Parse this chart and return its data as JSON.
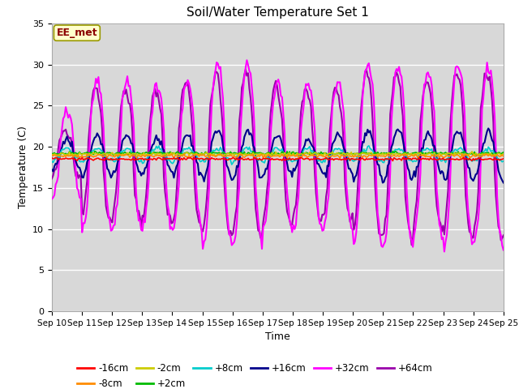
{
  "title": "Soil/Water Temperature Set 1",
  "xlabel": "Time",
  "ylabel": "Temperature (C)",
  "ylim": [
    0,
    35
  ],
  "xlim": [
    0,
    15
  ],
  "background_color": "#ffffff",
  "plot_bg_color": "#d8d8d8",
  "grid_color": "#ffffff",
  "x_tick_labels": [
    "Sep 10",
    "Sep 11",
    "Sep 12",
    "Sep 13",
    "Sep 14",
    "Sep 15",
    "Sep 16",
    "Sep 17",
    "Sep 18",
    "Sep 19",
    "Sep 20",
    "Sep 21",
    "Sep 22",
    "Sep 23",
    "Sep 24",
    "Sep 25"
  ],
  "annotation_text": "EE_met",
  "annotation_color": "#8b0000",
  "annotation_bg": "#ffffcc",
  "series": {
    "-16cm": {
      "color": "#ff0000",
      "lw": 1.2
    },
    "-8cm": {
      "color": "#ff8c00",
      "lw": 1.2
    },
    "-2cm": {
      "color": "#cccc00",
      "lw": 1.2
    },
    "+2cm": {
      "color": "#00bb00",
      "lw": 1.2
    },
    "+8cm": {
      "color": "#00cccc",
      "lw": 1.2
    },
    "+16cm": {
      "color": "#00008b",
      "lw": 1.5
    },
    "+32cm": {
      "color": "#ff00ff",
      "lw": 1.5
    },
    "+64cm": {
      "color": "#9900aa",
      "lw": 1.5
    }
  },
  "yticks": [
    0,
    5,
    10,
    15,
    20,
    25,
    30,
    35
  ],
  "base_temp": 19.0,
  "n_days": 15,
  "samples_per_day": 24,
  "amp32": [
    5,
    9,
    9,
    8.5,
    9,
    11,
    11,
    9,
    9,
    9,
    11,
    11,
    10,
    11,
    11
  ],
  "amp64": [
    3,
    8,
    8,
    8,
    8.5,
    10,
    10,
    8.5,
    8,
    8,
    10,
    10,
    9,
    10,
    10
  ],
  "amp16": [
    2,
    2.5,
    2.5,
    2,
    2.5,
    3,
    3,
    2.5,
    2,
    2.5,
    3,
    3,
    2.5,
    3,
    3
  ],
  "amp8": [
    0.8,
    0.8,
    0.8,
    0.8,
    0.8,
    0.8,
    0.8,
    0.8,
    0.8,
    0.8,
    0.8,
    0.8,
    0.8,
    0.8,
    0.8
  ]
}
